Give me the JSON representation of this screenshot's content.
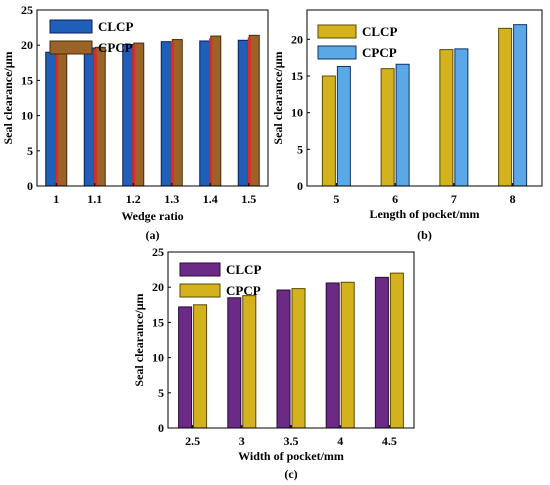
{
  "chart_data": [
    {
      "type": "bar",
      "panel_label": "(a)",
      "categories": [
        "1",
        "1.1",
        "1.2",
        "1.3",
        "1.4",
        "1.5"
      ],
      "series": [
        {
          "name": "CLCP",
          "values": [
            19.0,
            19.6,
            20.1,
            20.5,
            20.6,
            20.7
          ],
          "color": "#1f5fb8",
          "edge": "#0a1f5a"
        },
        {
          "name": "CPCP",
          "values": [
            19.0,
            19.7,
            20.3,
            20.8,
            21.3,
            21.4
          ],
          "color": "#9a6428",
          "edge": "#4a2a08",
          "inner_color": "#e02828"
        }
      ],
      "xlabel": "Wedge ratio",
      "ylabel": "Seal clearance/μm",
      "ylim": [
        0,
        25
      ],
      "yticks": [
        "0",
        "5",
        "10",
        "15",
        "20",
        "25"
      ],
      "legend_position": "top-left"
    },
    {
      "type": "bar",
      "panel_label": "(b)",
      "categories": [
        "5",
        "6",
        "7",
        "8"
      ],
      "series": [
        {
          "name": "CLCP",
          "values": [
            15.0,
            16.0,
            18.6,
            21.5
          ],
          "color": "#d4b21e",
          "edge": "#5a4a00"
        },
        {
          "name": "CPCP",
          "values": [
            16.3,
            16.6,
            18.7,
            22.0
          ],
          "color": "#5aa8e6",
          "edge": "#10306a"
        }
      ],
      "xlabel": "Length of pocket/mm",
      "ylabel": "Seal clearance/μm",
      "ylim": [
        0,
        24
      ],
      "yticks": [
        "0",
        "5",
        "10",
        "15",
        "20"
      ],
      "legend_position": "top-left"
    },
    {
      "type": "bar",
      "panel_label": "(c)",
      "categories": [
        "2.5",
        "3",
        "3.5",
        "4",
        "4.5"
      ],
      "series": [
        {
          "name": "CLCP",
          "values": [
            17.2,
            18.5,
            19.6,
            20.6,
            21.4
          ],
          "color": "#6a2a86",
          "edge": "#2a0a3a"
        },
        {
          "name": "CPCP",
          "values": [
            17.5,
            18.8,
            19.8,
            20.7,
            22.0
          ],
          "color": "#d4b21e",
          "edge": "#5a4a00"
        }
      ],
      "xlabel": "Width of pocket/mm",
      "ylabel": "Seal clearance/μm",
      "ylim": [
        0,
        25
      ],
      "yticks": [
        "0",
        "5",
        "10",
        "15",
        "20",
        "25"
      ],
      "legend_position": "top-left"
    }
  ]
}
